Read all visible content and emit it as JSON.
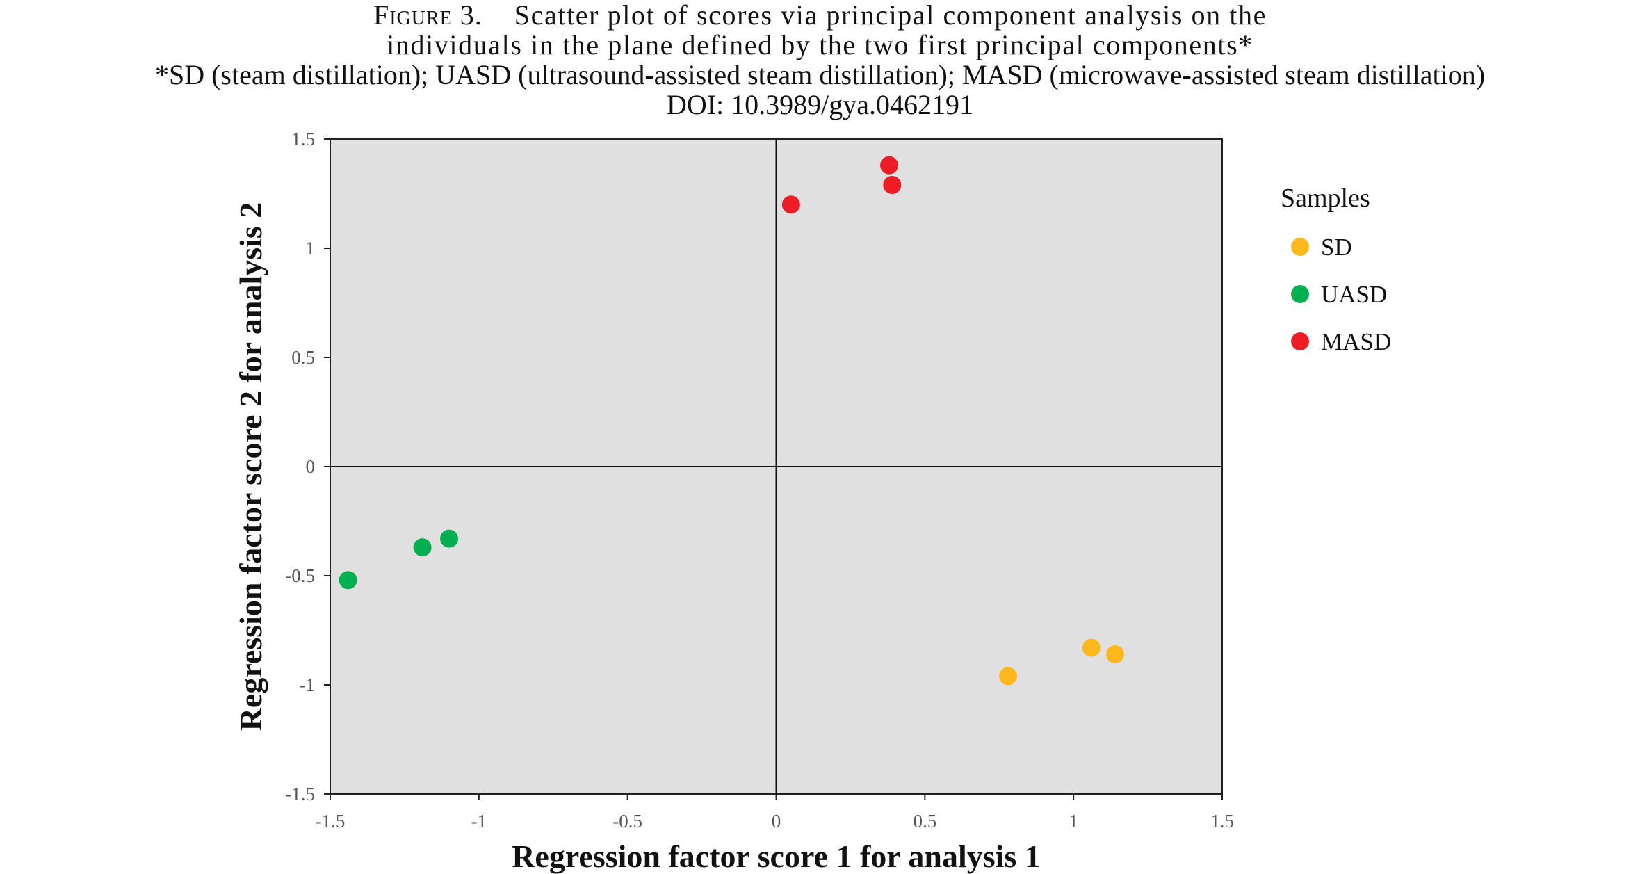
{
  "caption": {
    "figure_label": "Figure 3.",
    "line1": "Scatter plot of scores via principal component analysis on the",
    "line2": "individuals in the plane defined by the two first principal components*",
    "line3": "*SD (steam distillation); UASD (ultrasound-assisted steam distillation); MASD (microwave-assisted steam distillation)",
    "line4": "DOI: 10.3989/gya.0462191"
  },
  "chart_data": {
    "type": "scatter",
    "title": "",
    "xlabel": "Regression factor score  1 for analysis 1",
    "ylabel": "Regression factor score  2 for analysis 2",
    "xlim": [
      -1.5,
      1.5
    ],
    "ylim": [
      -1.5,
      1.5
    ],
    "x_ticks": [
      "-1.5",
      "-1",
      "-0.5",
      "0",
      "0.5",
      "1",
      "1.5"
    ],
    "y_ticks": [
      "1.5",
      "1",
      "0.5",
      "0",
      "-0.5",
      "-1",
      "-1.5"
    ],
    "grid": false,
    "zero_lines": true,
    "plot_background": "#e0e0e0",
    "legend": {
      "title": "Samples",
      "placement": "right"
    },
    "series": [
      {
        "name": "SD",
        "color": "#ffb81c",
        "points": [
          {
            "x": 0.78,
            "y": -0.96
          },
          {
            "x": 1.06,
            "y": -0.83
          },
          {
            "x": 1.14,
            "y": -0.86
          }
        ]
      },
      {
        "name": "UASD",
        "color": "#00b050",
        "points": [
          {
            "x": -1.44,
            "y": -0.52
          },
          {
            "x": -1.19,
            "y": -0.37
          },
          {
            "x": -1.1,
            "y": -0.33
          }
        ]
      },
      {
        "name": "MASD",
        "color": "#ee1c25",
        "points": [
          {
            "x": 0.05,
            "y": 1.2
          },
          {
            "x": 0.38,
            "y": 1.38
          },
          {
            "x": 0.39,
            "y": 1.29
          }
        ]
      }
    ]
  }
}
